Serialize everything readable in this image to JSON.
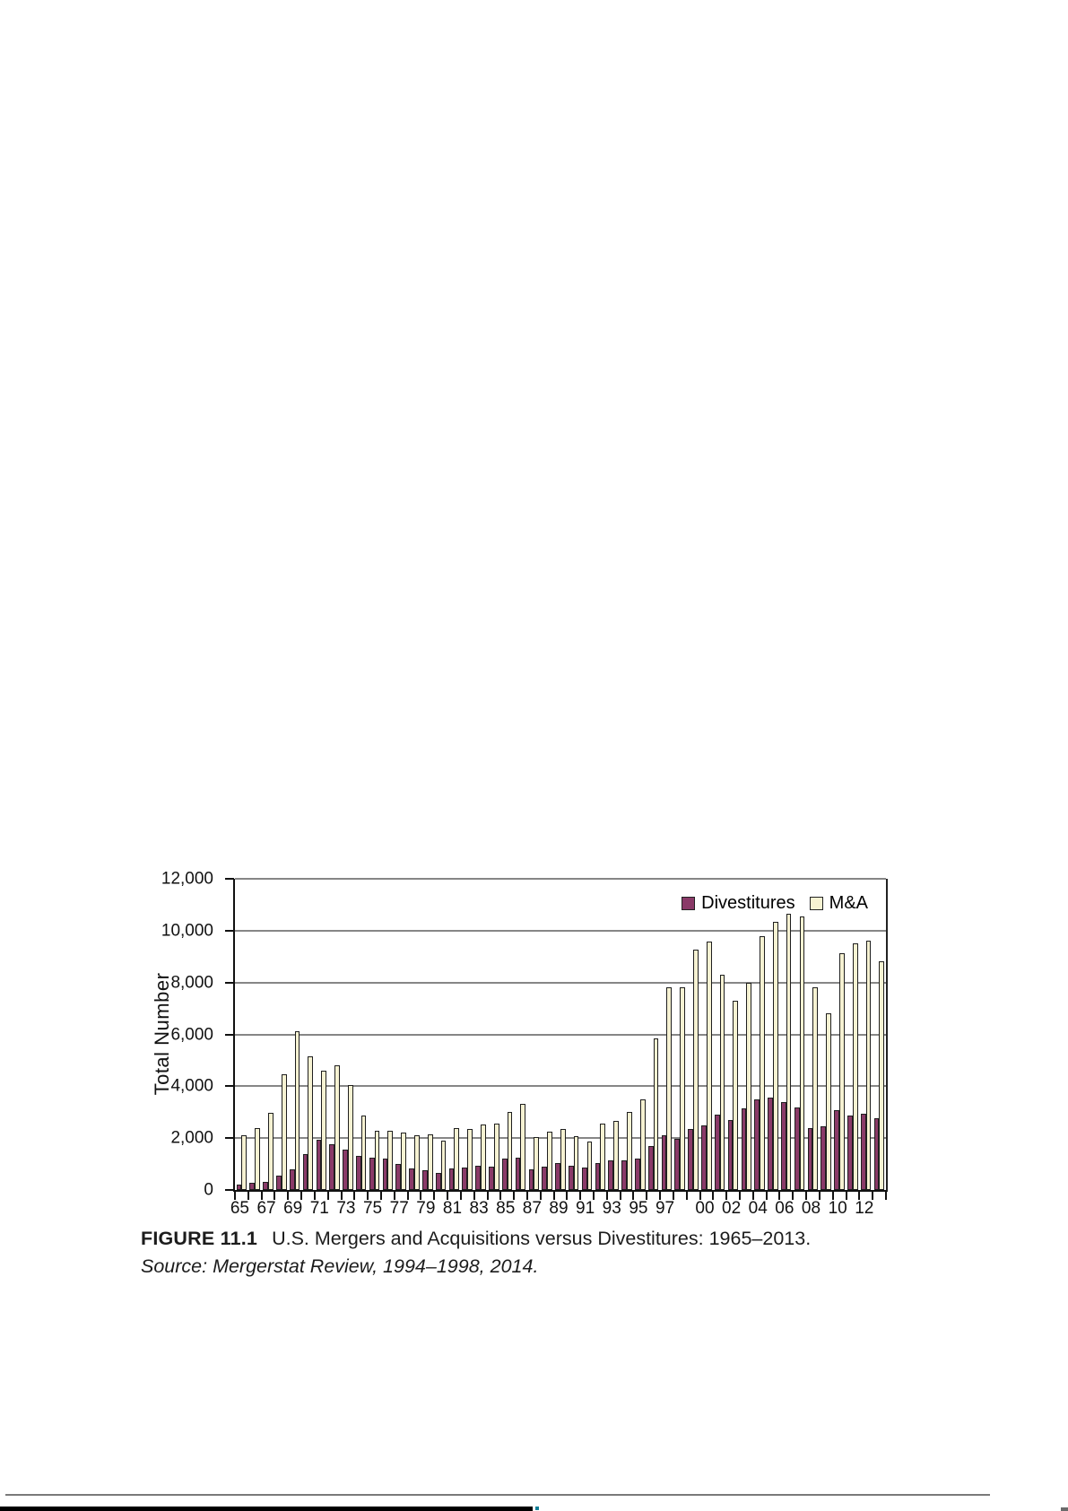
{
  "figure": {
    "caption_label": "FIGURE 11.1",
    "caption_text": "U.S. Mergers and Acquisitions versus Divestitures: 1965–2013.",
    "source_line": "Source: Mergerstat Review, 1994–1998, 2014."
  },
  "chart_data": {
    "type": "bar",
    "title": "",
    "xlabel": "",
    "ylabel": "Total Number",
    "ylim": [
      0,
      12000
    ],
    "grid": "horizontal-gray",
    "legend_position": "top-right-inside",
    "y_tick_values": [
      0,
      2000,
      4000,
      6000,
      8000,
      10000,
      12000
    ],
    "y_tick_labels": [
      "0",
      "2,000",
      "4,000",
      "6,000",
      "8,000",
      "10,000",
      "12,000"
    ],
    "x": [
      1965,
      1966,
      1967,
      1968,
      1969,
      1970,
      1971,
      1972,
      1973,
      1974,
      1975,
      1976,
      1977,
      1978,
      1979,
      1980,
      1981,
      1982,
      1983,
      1984,
      1985,
      1986,
      1987,
      1988,
      1989,
      1990,
      1991,
      1992,
      1993,
      1994,
      1995,
      1996,
      1997,
      1998,
      1999,
      2000,
      2001,
      2002,
      2003,
      2004,
      2005,
      2006,
      2007,
      2008,
      2009,
      2010,
      2011,
      2012,
      2013
    ],
    "x_labeled_years": [
      1965,
      1967,
      1969,
      1971,
      1973,
      1975,
      1977,
      1979,
      1981,
      1983,
      1985,
      1987,
      1989,
      1991,
      1993,
      1995,
      1997,
      2000,
      2002,
      2004,
      2006,
      2008,
      2010,
      2012
    ],
    "x_tick_labels": [
      "65",
      "67",
      "69",
      "71",
      "73",
      "75",
      "77",
      "79",
      "81",
      "83",
      "85",
      "87",
      "89",
      "91",
      "93",
      "95",
      "97",
      "00",
      "02",
      "04",
      "06",
      "08",
      "10",
      "12"
    ],
    "series": [
      {
        "name": "Divestitures",
        "color": "#8a3a68",
        "values": [
          191,
          264,
          328,
          557,
          801,
          1401,
          1920,
          1770,
          1557,
          1331,
          1236,
          1204,
          1002,
          820,
          752,
          666,
          830,
          875,
          932,
          900,
          1218,
          1259,
          807,
          894,
          1055,
          940,
          849,
          1026,
          1134,
          1134,
          1199,
          1702,
          2108,
          1987,
          2353,
          2501,
          2895,
          2691,
          3164,
          3502,
          3556,
          3375,
          3166,
          2374,
          2462,
          3062,
          2873,
          2950,
          2770
        ]
      },
      {
        "name": "M&A",
        "color": "#f6f2d2",
        "values": [
          2125,
          2377,
          2975,
          4462,
          6107,
          5152,
          4608,
          4801,
          4040,
          2861,
          2297,
          2276,
          2224,
          2106,
          2128,
          1889,
          2395,
          2346,
          2533,
          2543,
          3001,
          3336,
          2032,
          2258,
          2366,
          2074,
          1877,
          2574,
          2663,
          2997,
          3510,
          5848,
          7800,
          7809,
          9278,
          9566,
          8290,
          7303,
          8001,
          9783,
          10332,
          10660,
          10559,
          7807,
          6796,
          9116,
          9519,
          9610,
          8828
        ]
      }
    ]
  }
}
